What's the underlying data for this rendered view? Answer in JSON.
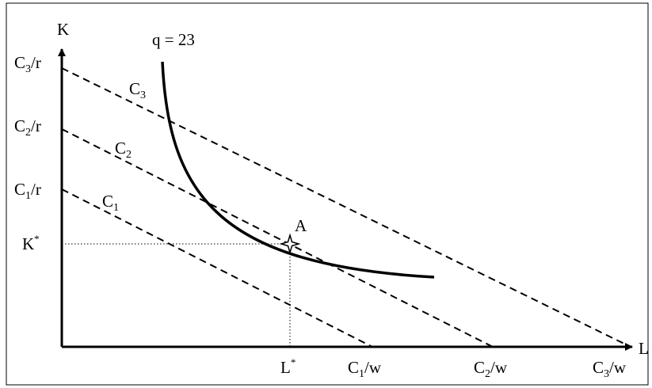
{
  "axes": {
    "y_label": "K",
    "x_label": "L"
  },
  "isoquant": {
    "label": "q = 23"
  },
  "isocost_lines": [
    {
      "name_main": "C",
      "name_sub": "3",
      "y_intercept": {
        "main": "C",
        "sub": "3",
        "suffix": "/r"
      },
      "x_intercept": {
        "main": "C",
        "sub": "3",
        "suffix": "/w"
      }
    },
    {
      "name_main": "C",
      "name_sub": "2",
      "y_intercept": {
        "main": "C",
        "sub": "2",
        "suffix": "/r"
      },
      "x_intercept": {
        "main": "C",
        "sub": "2",
        "suffix": "/w"
      }
    },
    {
      "name_main": "C",
      "name_sub": "1",
      "y_intercept": {
        "main": "C",
        "sub": "1",
        "suffix": "/r"
      },
      "x_intercept": {
        "main": "C",
        "sub": "1",
        "suffix": "/w"
      }
    }
  ],
  "optimum": {
    "point_label": "A",
    "k_main": "K",
    "k_sup": "*",
    "l_main": "L",
    "l_sup": "*"
  }
}
